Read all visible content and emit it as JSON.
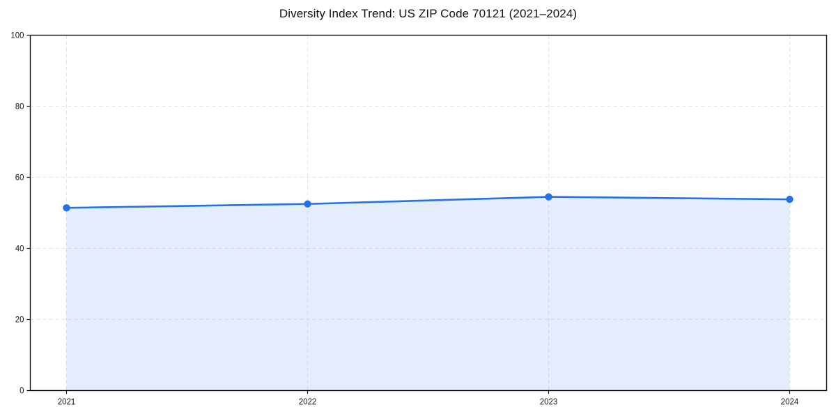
{
  "chart_data": {
    "type": "line",
    "title": "Diversity Index Trend: US ZIP Code 70121 (2021–2024)",
    "x": [
      "2021",
      "2022",
      "2023",
      "2024"
    ],
    "series": [
      {
        "name": "Diversity Index",
        "values": [
          51.4,
          52.5,
          54.5,
          53.8
        ]
      }
    ],
    "xlabel": "",
    "ylabel": "",
    "ylim": [
      0,
      100
    ],
    "yticks": [
      0,
      20,
      40,
      60,
      80,
      100
    ],
    "grid": true,
    "grid_style": "dashed",
    "legend": false,
    "area_fill": true,
    "marker": "circle",
    "colors": {
      "line": "#2372e8",
      "marker": "#2372e8",
      "fill": "#2372e8",
      "fill_opacity": 0.13,
      "grid": "#e2e2e2",
      "spine": "#0d0d0d",
      "tick_label": "#1a1a1a",
      "background": "#ffffff"
    }
  }
}
